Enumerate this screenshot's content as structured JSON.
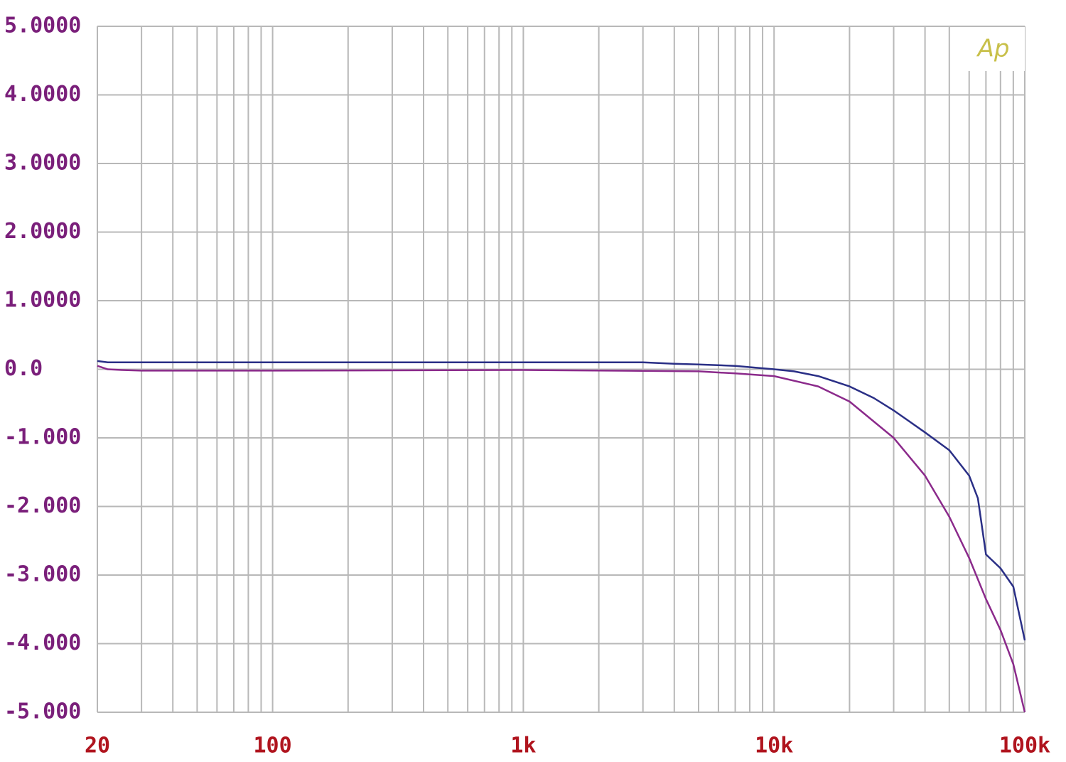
{
  "chart_data": {
    "type": "line",
    "logo": "Ap",
    "xscale": "log",
    "grid": true,
    "minor_grid": true,
    "xlim": [
      20,
      100000
    ],
    "ylim": [
      -5,
      5
    ],
    "xticks": [
      20,
      100,
      {
        "value": 1000,
        "label": "1k"
      },
      {
        "value": 10000,
        "label": "10k"
      },
      {
        "value": 100000,
        "label": "100k"
      }
    ],
    "yticks": [
      {
        "value": 5,
        "label": "5.0000"
      },
      {
        "value": 4,
        "label": "4.0000"
      },
      {
        "value": 3,
        "label": "3.0000"
      },
      {
        "value": 2,
        "label": "2.0000"
      },
      {
        "value": 1,
        "label": "1.0000"
      },
      {
        "value": 0,
        "label": "0.0"
      },
      {
        "value": -1,
        "label": "-1.000"
      },
      {
        "value": -2,
        "label": "-2.000"
      },
      {
        "value": -3,
        "label": "-3.000"
      },
      {
        "value": -4,
        "label": "-4.000"
      },
      {
        "value": -5,
        "label": "-5.000"
      }
    ],
    "series": [
      {
        "color": "#2a2f86",
        "x": [
          20,
          22,
          30,
          100,
          1000,
          3000,
          4000,
          5000,
          7000,
          10000,
          12000,
          15000,
          20000,
          25000,
          30000,
          40000,
          50000,
          60000,
          65000,
          70000,
          80000,
          90000,
          100000
        ],
        "values": [
          0.12,
          0.1,
          0.1,
          0.1,
          0.1,
          0.1,
          0.08,
          0.07,
          0.05,
          0.0,
          -0.03,
          -0.1,
          -0.25,
          -0.42,
          -0.6,
          -0.92,
          -1.18,
          -1.55,
          -1.88,
          -2.7,
          -2.9,
          -3.17,
          -3.95
        ]
      },
      {
        "color": "#8b2a8b",
        "x": [
          20,
          22,
          25,
          30,
          100,
          1000,
          5000,
          7000,
          10000,
          15000,
          20000,
          30000,
          40000,
          50000,
          60000,
          70000,
          80000,
          90000,
          100000
        ],
        "values": [
          0.05,
          0.0,
          -0.01,
          -0.02,
          -0.02,
          -0.01,
          -0.03,
          -0.06,
          -0.1,
          -0.25,
          -0.47,
          -1.0,
          -1.55,
          -2.15,
          -2.75,
          -3.35,
          -3.8,
          -4.3,
          -5.0
        ]
      }
    ]
  }
}
